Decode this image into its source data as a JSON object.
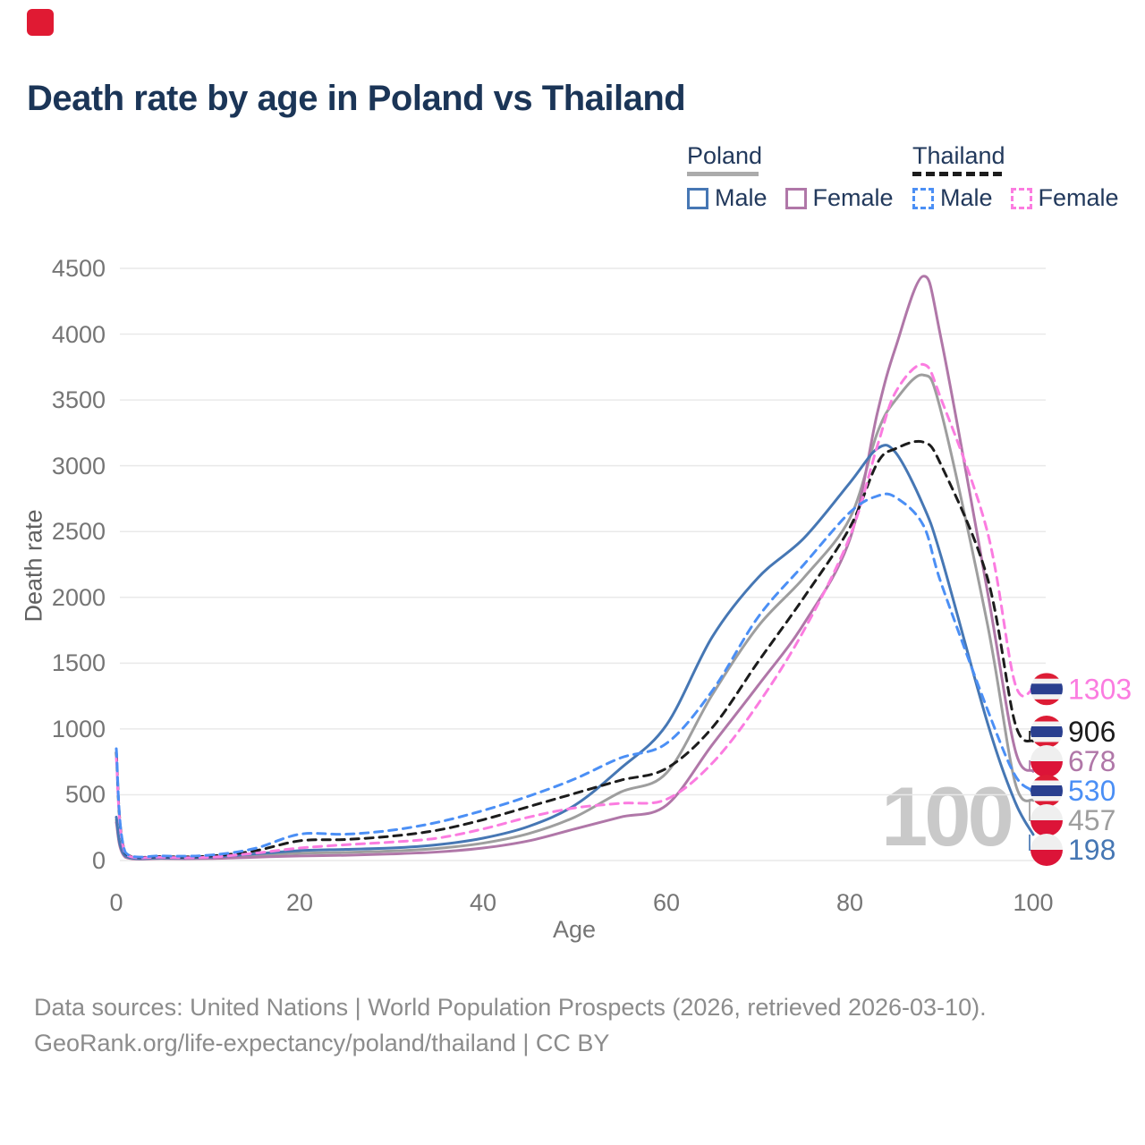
{
  "record_indicator": {
    "shown": true,
    "color": "#e01a33"
  },
  "title": "Death rate by age in Poland vs Thailand",
  "legend": {
    "groups": [
      {
        "country": "Poland",
        "line_style": "solid",
        "line_color": "#ababab",
        "items": [
          {
            "label": "Male",
            "color": "#4677b4",
            "style": "solid"
          },
          {
            "label": "Female",
            "color": "#b077a8",
            "style": "solid"
          }
        ]
      },
      {
        "country": "Thailand",
        "line_style": "dashed",
        "line_color": "#1c1c1c",
        "items": [
          {
            "label": "Male",
            "color": "#4b8ff5",
            "style": "dashed"
          },
          {
            "label": "Female",
            "color": "#fb7ce0",
            "style": "dashed"
          }
        ]
      }
    ]
  },
  "watermark": "100",
  "chart_data": {
    "type": "line",
    "title": "Death rate by age in Poland vs Thailand",
    "xlabel": "Age",
    "ylabel": "Death rate",
    "xlim": [
      0,
      100
    ],
    "ylim": [
      0,
      4500
    ],
    "x_ticks": [
      0,
      20,
      40,
      60,
      80,
      100
    ],
    "y_ticks": [
      0,
      500,
      1000,
      1500,
      2000,
      2500,
      3000,
      3500,
      4000,
      4500
    ],
    "grid": "horizontal",
    "legend_position": "top-right",
    "x": [
      0,
      1,
      5,
      10,
      15,
      20,
      25,
      30,
      35,
      40,
      45,
      50,
      55,
      60,
      65,
      70,
      75,
      80,
      83,
      85,
      88,
      90,
      95,
      98,
      100
    ],
    "series": [
      {
        "name": "Poland Both sexes",
        "country": "Poland",
        "sex": "both",
        "color": "#9e9e9e",
        "dash": "solid",
        "flag": "poland",
        "end_label": 457,
        "values": [
          310,
          30,
          17,
          20,
          38,
          55,
          62,
          72,
          92,
          132,
          205,
          330,
          520,
          665,
          1260,
          1780,
          2150,
          2600,
          3250,
          3500,
          3690,
          3400,
          1800,
          600,
          457
        ]
      },
      {
        "name": "Poland Female",
        "country": "Poland",
        "sex": "female",
        "color": "#b077a8",
        "dash": "solid",
        "flag": "poland",
        "end_label": 678,
        "values": [
          290,
          25,
          15,
          15,
          25,
          35,
          40,
          50,
          65,
          95,
          150,
          240,
          330,
          420,
          880,
          1330,
          1800,
          2440,
          3400,
          3900,
          4440,
          3950,
          2050,
          850,
          678
        ]
      },
      {
        "name": "Poland Male",
        "country": "Poland",
        "sex": "male",
        "color": "#4677b4",
        "dash": "solid",
        "flag": "poland",
        "end_label": 198,
        "values": [
          330,
          35,
          20,
          25,
          50,
          75,
          85,
          95,
          120,
          170,
          260,
          420,
          700,
          1030,
          1700,
          2150,
          2450,
          2870,
          3130,
          3100,
          2700,
          2300,
          1050,
          450,
          198
        ]
      },
      {
        "name": "Thailand Both sexes",
        "country": "Thailand",
        "sex": "both",
        "color": "#1c1c1c",
        "dash": "dashed",
        "flag": "thailand",
        "end_label": 906,
        "values": [
          820,
          55,
          30,
          33,
          72,
          150,
          160,
          185,
          230,
          310,
          410,
          510,
          610,
          700,
          1010,
          1510,
          2000,
          2530,
          3020,
          3130,
          3180,
          3000,
          2150,
          1050,
          906
        ]
      },
      {
        "name": "Thailand Female",
        "country": "Thailand",
        "sex": "female",
        "color": "#fb7ce0",
        "dash": "dashed",
        "flag": "thailand",
        "end_label": 1303,
        "values": [
          780,
          50,
          25,
          25,
          55,
          95,
          120,
          140,
          170,
          240,
          330,
          400,
          435,
          465,
          740,
          1190,
          1750,
          2460,
          3150,
          3560,
          3770,
          3500,
          2500,
          1350,
          1303
        ]
      },
      {
        "name": "Thailand Male",
        "country": "Thailand",
        "sex": "male",
        "color": "#4b8ff5",
        "dash": "dashed",
        "flag": "thailand",
        "end_label": 530,
        "values": [
          850,
          60,
          35,
          40,
          90,
          200,
          200,
          230,
          290,
          380,
          490,
          620,
          780,
          890,
          1290,
          1850,
          2250,
          2645,
          2770,
          2760,
          2550,
          2100,
          1150,
          650,
          530
        ]
      }
    ],
    "flag_colors": {
      "poland_white": "#efefef",
      "poland_red": "#dc1438",
      "thai_red": "#dd1c35",
      "thai_white": "#f2f2f2",
      "thai_blue": "#2a3f8f"
    }
  },
  "footer": {
    "line1": "Data sources: United Nations | World Population Prospects (2026, retrieved 2026-03-10).",
    "line2": "GeoRank.org/life-expectancy/poland/thailand | CC BY"
  }
}
